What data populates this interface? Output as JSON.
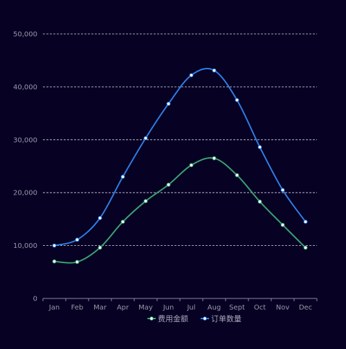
{
  "chart_data": {
    "type": "line",
    "categories": [
      "Jan",
      "Feb",
      "Mar",
      "Apr",
      "May",
      "Jun",
      "Jul",
      "Aug",
      "Sept",
      "Oct",
      "Nov",
      "Dec"
    ],
    "series": [
      {
        "name": "费用金额",
        "color": "#3ba272",
        "values": [
          7000,
          6900,
          9600,
          14500,
          18400,
          21500,
          25200,
          26500,
          23300,
          18300,
          13900,
          9600
        ]
      },
      {
        "name": "订单数量",
        "color": "#2f7ee6",
        "values": [
          10000,
          11100,
          15200,
          23000,
          30300,
          36800,
          42200,
          43100,
          37500,
          28600,
          20500,
          14500
        ]
      }
    ],
    "y_ticks": [
      "0",
      "10,000",
      "20,000",
      "30,000",
      "40,000",
      "50,000"
    ],
    "ylim": [
      0,
      50000
    ],
    "grid": true,
    "smooth": true,
    "legend_position": "bottom-center",
    "title": "",
    "xlabel": "",
    "ylabel": ""
  }
}
